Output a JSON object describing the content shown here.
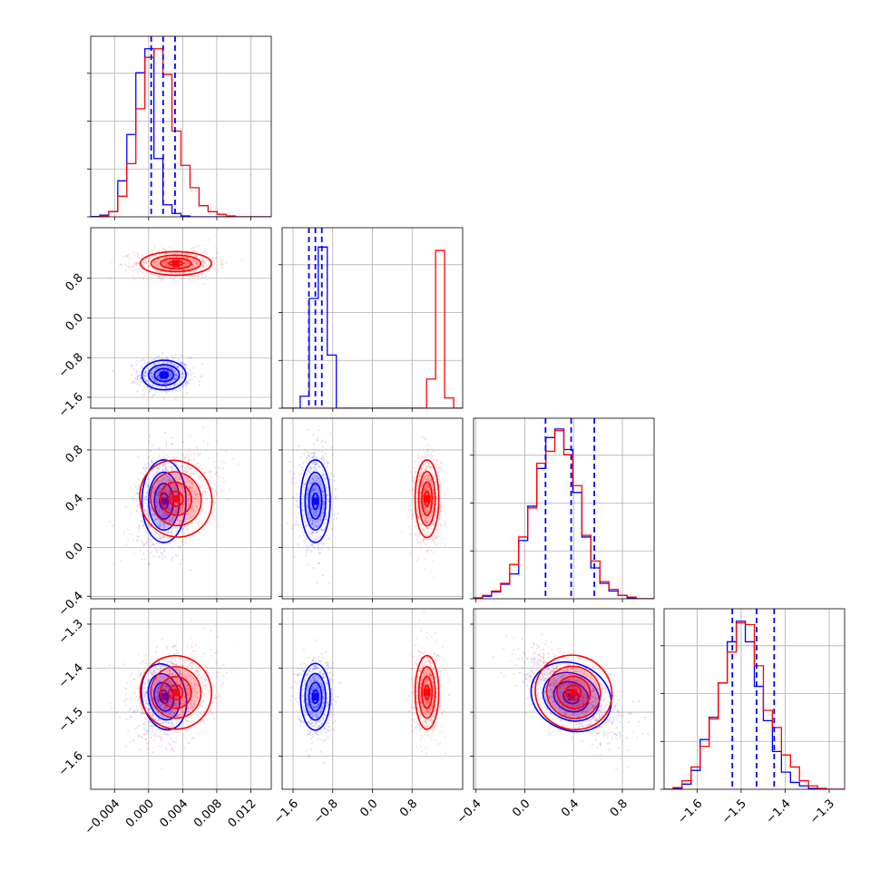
{
  "chart_data": {
    "type": "corner",
    "grid": true,
    "colors": {
      "blue_sample": "#0000ff",
      "red_sample": "#ff0000",
      "grid": "#b0b0b0"
    },
    "samples": [
      {
        "color": "#0000ff",
        "mean": [
          0.0018,
          -1.15,
          0.38,
          -1.465
        ],
        "sd": [
          0.0013,
          0.15,
          0.17,
          0.038
        ],
        "corr_23": -0.62,
        "corr_03": 0.15
      },
      {
        "color": "#ff0000",
        "mean": [
          0.0032,
          1.1,
          0.4,
          -1.455
        ],
        "sd": [
          0.0021,
          0.12,
          0.16,
          0.042
        ],
        "corr_23": -0.65,
        "corr_02": 0.45,
        "corr_03": 0.25
      }
    ],
    "ranges": [
      [
        -0.0068,
        0.0144
      ],
      [
        -1.82,
        1.82
      ],
      [
        -0.42,
        1.06
      ],
      [
        -1.675,
        -1.265
      ]
    ],
    "quantile_lines": [
      [
        0.0003,
        0.0017,
        0.0031
      ],
      [
        -1.28,
        -1.15,
        -1.02
      ],
      [
        0.17,
        0.38,
        0.57
      ],
      [
        -1.52,
        -1.465,
        -1.425
      ]
    ],
    "histograms": [
      {
        "blue": [
          0.002,
          0.01,
          0.03,
          0.21,
          0.48,
          0.84,
          0.98,
          0.34,
          0.07,
          0.02,
          0.005,
          0,
          0,
          0,
          0,
          0,
          0,
          0,
          0,
          0
        ],
        "red": [
          0,
          0.005,
          0.03,
          0.12,
          0.31,
          0.63,
          0.93,
          0.98,
          0.83,
          0.5,
          0.3,
          0.17,
          0.065,
          0.03,
          0.015,
          0.005,
          0,
          0,
          0,
          0
        ]
      },
      {
        "blue": [
          0,
          0,
          0.07,
          0.64,
          0.94,
          0.31,
          0,
          0,
          0,
          0,
          0,
          0,
          0,
          0,
          0,
          0,
          0,
          0,
          0,
          0
        ],
        "red": [
          0,
          0,
          0,
          0,
          0,
          0,
          0,
          0,
          0,
          0,
          0,
          0,
          0,
          0,
          0,
          0,
          0.17,
          0.92,
          0.06,
          0
        ]
      },
      {
        "blue": [
          0.005,
          0.015,
          0.04,
          0.085,
          0.145,
          0.34,
          0.54,
          0.76,
          0.94,
          0.99,
          0.87,
          0.62,
          0.36,
          0.18,
          0.09,
          0.045,
          0.02,
          0.005,
          0,
          0
        ],
        "red": [
          0.005,
          0.02,
          0.045,
          0.09,
          0.2,
          0.36,
          0.53,
          0.79,
          0.86,
          0.98,
          0.84,
          0.66,
          0.37,
          0.22,
          0.1,
          0.055,
          0.02,
          0.01,
          0,
          0
        ]
      },
      {
        "blue": [
          0,
          0.005,
          0.03,
          0.11,
          0.29,
          0.42,
          0.62,
          0.86,
          0.98,
          0.86,
          0.6,
          0.4,
          0.22,
          0.1,
          0.04,
          0.02,
          0.005,
          0,
          0,
          0
        ],
        "red": [
          0,
          0.01,
          0.05,
          0.13,
          0.25,
          0.41,
          0.62,
          0.8,
          0.97,
          0.96,
          0.72,
          0.46,
          0.36,
          0.2,
          0.13,
          0.05,
          0.02,
          0.005,
          0,
          0
        ]
      }
    ],
    "ticks": [
      {
        "values": [
          -0.004,
          0.0,
          0.004,
          0.008,
          0.012
        ],
        "labels": [
          "−0.004",
          "0.000",
          "0.004",
          "0.008",
          "0.012"
        ]
      },
      {
        "values": [
          -1.6,
          -0.8,
          0.0,
          0.8
        ],
        "labels": [
          "−1.6",
          "−0.8",
          "0.0",
          "0.8"
        ]
      },
      {
        "values": [
          -0.4,
          0.0,
          0.4,
          0.8
        ],
        "labels": [
          "−0.4",
          "0.0",
          "0.4",
          "0.8"
        ]
      },
      {
        "values": [
          -1.6,
          -1.5,
          -1.4,
          -1.3
        ],
        "labels": [
          "−1.6",
          "−1.5",
          "−1.4",
          "−1.3"
        ]
      }
    ],
    "hist_y_ticks": 4,
    "contour_levels": [
      0.39,
      0.86,
      1.39,
      1.99
    ]
  }
}
